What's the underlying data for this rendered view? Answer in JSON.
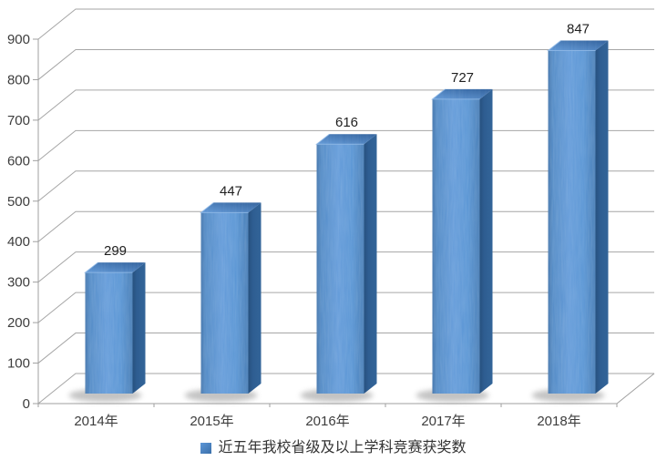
{
  "chart_data": {
    "type": "bar",
    "variant": "3d-column",
    "title": "",
    "categories": [
      "2014年",
      "2015年",
      "2016年",
      "2017年",
      "2018年"
    ],
    "values": [
      299,
      447,
      616,
      727,
      847
    ],
    "data_labels": [
      "299",
      "447",
      "616",
      "727",
      "847"
    ],
    "series_name": "近五年我校省级及以上学科竞赛获奖数",
    "xlabel": "",
    "ylabel": "",
    "ylim": [
      0,
      900
    ],
    "ytick_step": 100,
    "ytick_labels": [
      "0",
      "100",
      "200",
      "300",
      "400",
      "500",
      "600",
      "700",
      "800",
      "900"
    ],
    "grid": true,
    "legend_position": "bottom",
    "colors": {
      "bar_front": "#4e8bca",
      "bar_front_light": "#5d97d8",
      "bar_front_dark": "#3a6fa9",
      "bar_top_front": "#5b95d6",
      "bar_top_back": "#2b5e9c",
      "bar_side": "#2e5d91",
      "bar_side_dark": "#27517f",
      "bar_bevel": "#8fb8e6",
      "gridline": "#a6a6a6",
      "axis": "#9f9f9f",
      "tick_text": "#3d3d3d",
      "data_label_text": "#1f1f1f",
      "legend_text": "#333333",
      "legend_marker": "#4e8bca",
      "shadow": "#7a7a7a",
      "background": "#ffffff"
    }
  }
}
